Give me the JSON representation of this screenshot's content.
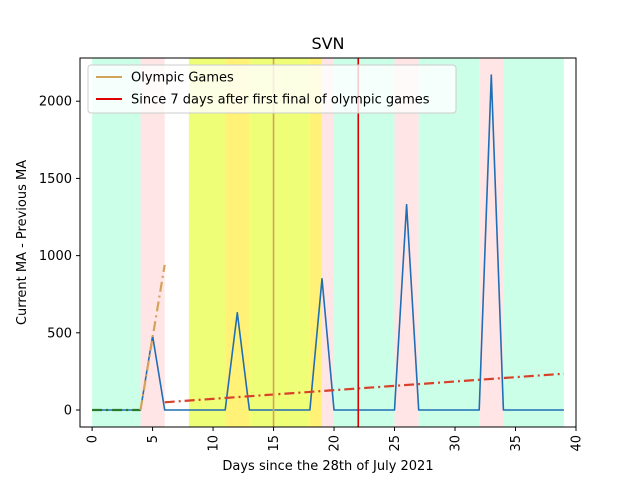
{
  "chart_data": {
    "type": "line",
    "title": "SVN",
    "xlabel": "Days since the 28th of July 2021",
    "ylabel": "Current MA - Previous MA",
    "xlim": [
      -1,
      40
    ],
    "ylim": [
      -110,
      2280
    ],
    "xticks": [
      0,
      5,
      10,
      15,
      20,
      25,
      30,
      35,
      40
    ],
    "xtick_labels": [
      "0",
      "5",
      "10",
      "15",
      "20",
      "25",
      "30",
      "35",
      "40"
    ],
    "xtick_rotation": "vertical",
    "yticks": [
      0,
      500,
      1000,
      1500,
      2000
    ],
    "ytick_labels": [
      "0",
      "500",
      "1000",
      "1500",
      "2000"
    ],
    "grid": false,
    "legend": {
      "placement": "top-left",
      "entries": [
        {
          "label": "Olympic Games",
          "color": "#d4a35a"
        },
        {
          "label": "Since 7 days after first final of olympic games",
          "color": "#e00000"
        }
      ]
    },
    "background_bands": [
      {
        "x0": 0,
        "x1": 4,
        "color": "#ccffe8"
      },
      {
        "x0": 4,
        "x1": 6,
        "color": "#ffe5e5"
      },
      {
        "x0": 8,
        "x1": 11,
        "color": "#eeff77"
      },
      {
        "x0": 11,
        "x1": 13,
        "color": "#fff277"
      },
      {
        "x0": 13,
        "x1": 18,
        "color": "#eeff77"
      },
      {
        "x0": 18,
        "x1": 19,
        "color": "#fff277"
      },
      {
        "x0": 19,
        "x1": 20,
        "color": "#ffe5e5"
      },
      {
        "x0": 20,
        "x1": 25,
        "color": "#ccffe8"
      },
      {
        "x0": 25,
        "x1": 27,
        "color": "#ffe5e5"
      },
      {
        "x0": 27,
        "x1": 32,
        "color": "#ccffe8"
      },
      {
        "x0": 32,
        "x1": 34,
        "color": "#ffe5e5"
      },
      {
        "x0": 34,
        "x1": 39,
        "color": "#ccffe8"
      }
    ],
    "vlines": [
      {
        "x": 15,
        "color": "#d4a35a",
        "name": "Olympic Games"
      },
      {
        "x": 22,
        "color": "#e00000",
        "name": "Since 7 days after first final of olympic games"
      }
    ],
    "series": [
      {
        "color": "#1f6fb4",
        "x": [
          0,
          1,
          2,
          3,
          4,
          5,
          6,
          7,
          8,
          9,
          10,
          11,
          12,
          13,
          14,
          15,
          16,
          17,
          18,
          19,
          20,
          21,
          22,
          23,
          24,
          25,
          26,
          27,
          28,
          29,
          30,
          31,
          32,
          33,
          34,
          35,
          36,
          37,
          38,
          39
        ],
        "values": [
          0,
          0,
          0,
          0,
          0,
          480,
          0,
          0,
          0,
          0,
          0,
          0,
          630,
          0,
          0,
          0,
          0,
          0,
          0,
          850,
          0,
          0,
          0,
          0,
          0,
          0,
          1330,
          0,
          0,
          0,
          0,
          0,
          0,
          2170,
          0,
          0,
          0,
          0,
          0,
          0
        ]
      },
      {
        "color": "#2a7a2a",
        "style": "dash-dot",
        "x": [
          0,
          4
        ],
        "values": [
          0,
          0
        ]
      },
      {
        "color": "#d4a35a",
        "style": "dash-dot",
        "x": [
          4,
          6
        ],
        "values": [
          0,
          940
        ]
      },
      {
        "color": "#d9402a",
        "style": "dash-dot",
        "x": [
          6,
          39
        ],
        "values": [
          50,
          235
        ]
      }
    ]
  }
}
